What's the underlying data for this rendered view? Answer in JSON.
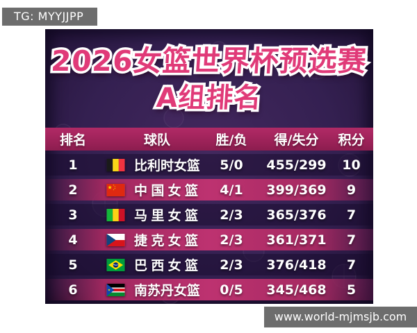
{
  "page": {
    "tg_badge": "TG: MYYJJPP",
    "site_badge": "www.world-mjmsjb.com"
  },
  "title": {
    "line1": "2026女篮世界杯预选赛",
    "line2": "A组排名"
  },
  "table": {
    "headers": {
      "rank": "排名",
      "team": "球队",
      "win_loss": "胜/负",
      "for_against": "得/失分",
      "points": "积分"
    },
    "rows": [
      {
        "rank": "1",
        "flag": "belgium-flag",
        "team": "比利时女篮",
        "win_loss": "5/0",
        "for_against": "455/299",
        "points": "10",
        "highlight": false
      },
      {
        "rank": "2",
        "flag": "china-flag",
        "team": "中国女篮",
        "win_loss": "4/1",
        "for_against": "399/369",
        "points": "9",
        "highlight": true
      },
      {
        "rank": "3",
        "flag": "mali-flag",
        "team": "马里女篮",
        "win_loss": "2/3",
        "for_against": "365/376",
        "points": "7",
        "highlight": false
      },
      {
        "rank": "4",
        "flag": "czechia-flag",
        "team": "捷克女篮",
        "win_loss": "2/3",
        "for_against": "361/371",
        "points": "7",
        "highlight": true
      },
      {
        "rank": "5",
        "flag": "brazil-flag",
        "team": "巴西女篮",
        "win_loss": "2/3",
        "for_against": "376/418",
        "points": "7",
        "highlight": false
      },
      {
        "rank": "6",
        "flag": "south-sudan-flag",
        "team": "南苏丹女篮",
        "win_loss": "0/5",
        "for_against": "345/468",
        "points": "5",
        "highlight": true
      }
    ]
  },
  "chart_data": {
    "type": "table",
    "title": "2026女篮世界杯预选赛 A组排名",
    "columns": [
      "排名",
      "球队",
      "胜/负",
      "得/失分",
      "积分"
    ],
    "rows": [
      [
        "1",
        "比利时女篮",
        "5/0",
        "455/299",
        "10"
      ],
      [
        "2",
        "中国女篮",
        "4/1",
        "399/369",
        "9"
      ],
      [
        "3",
        "马里女篮",
        "2/3",
        "365/376",
        "7"
      ],
      [
        "4",
        "捷克女篮",
        "2/3",
        "361/371",
        "7"
      ],
      [
        "5",
        "巴西女篮",
        "2/3",
        "376/418",
        "7"
      ],
      [
        "6",
        "南苏丹女篮",
        "0/5",
        "345/468",
        "5"
      ]
    ]
  },
  "colors": {
    "accent_pink": "#e03a78",
    "header_magenta": "#9c2258",
    "row_highlight_magenta": "#bd3270",
    "background_purple": "#342051",
    "badge_gray": "#6d6d6d",
    "text_white": "#ffffff"
  }
}
